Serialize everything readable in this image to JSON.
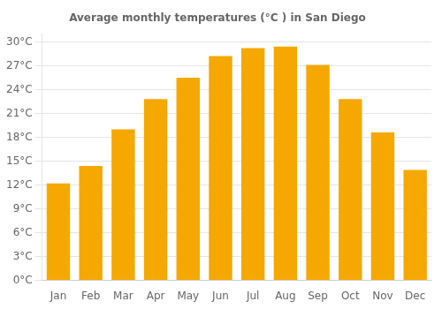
{
  "chart_data": {
    "type": "bar",
    "title": "Average monthly temperatures (°C ) in San Diego",
    "categories": [
      "Jan",
      "Feb",
      "Mar",
      "Apr",
      "May",
      "Jun",
      "Jul",
      "Aug",
      "Sep",
      "Oct",
      "Nov",
      "Dec"
    ],
    "values": [
      12.2,
      14.4,
      19.0,
      22.8,
      25.5,
      28.2,
      29.2,
      29.4,
      27.1,
      22.8,
      18.6,
      13.9
    ],
    "color": "#F5A800",
    "ylim": [
      0,
      31
    ],
    "yticks": [
      {
        "value": 0,
        "label": "0°C"
      },
      {
        "value": 3,
        "label": "3°C"
      },
      {
        "value": 6,
        "label": "6°C"
      },
      {
        "value": 9,
        "label": "9°C"
      },
      {
        "value": 12,
        "label": "12°C"
      },
      {
        "value": 15,
        "label": "15°C"
      },
      {
        "value": 18,
        "label": "18°C"
      },
      {
        "value": 21,
        "label": "21°C"
      },
      {
        "value": 24,
        "label": "24°C"
      },
      {
        "value": 27,
        "label": "27°C"
      },
      {
        "value": 30,
        "label": "30°C"
      }
    ],
    "grid": true
  }
}
